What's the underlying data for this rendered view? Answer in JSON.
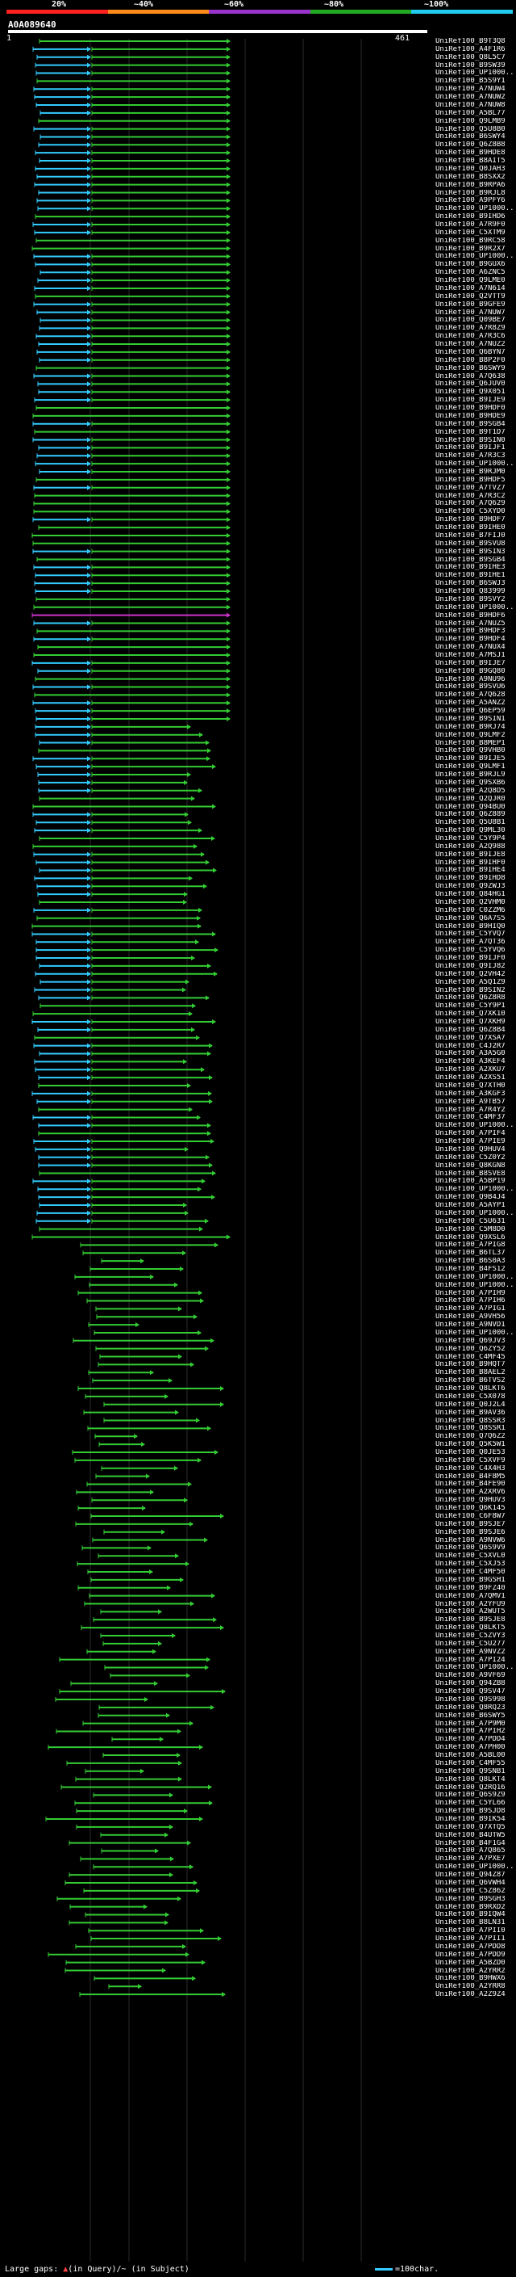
{
  "ruler": {
    "labels": [
      "20%",
      "~40%",
      "~60%",
      "~80%",
      "~100%"
    ],
    "colors": [
      "#ff2020",
      "#ff8c1a",
      "#9933cc",
      "#22aa22",
      "#22ccee"
    ]
  },
  "query": {
    "id": "A0A089640",
    "start": "1",
    "end": "461"
  },
  "colors": {
    "green": "#33cc33",
    "cyan": "#33ccff",
    "magenta": "#cc33cc",
    "grid": "#555555"
  },
  "hits": [
    "UniRef100_B9T3Q8",
    "UniRef100_A4F1R6",
    "UniRef100_Q8L5C7",
    "UniRef100_B9SW39",
    "UniRef100_UP1000...",
    "UniRef100_B5S9Y1",
    "UniRef100_A7NUW4",
    "UniRef100_A7NUW2",
    "UniRef100_A7NUW8",
    "UniRef100_A5BL77",
    "UniRef100_Q9LMB9",
    "UniRef100_Q5U8B0",
    "UniRef100_B6SWY4",
    "UniRef100_Q6Z8B8",
    "UniRef100_B9HDE8",
    "UniRef100_B8AIT5",
    "UniRef100_Q0JAH3",
    "UniRef100_B8SXX2",
    "UniRef100_B9RPA6",
    "UniRef100_B9RJL8",
    "UniRef100_A9PFY6",
    "UniRef100_UP1000...",
    "UniRef100_B9IHD6",
    "UniRef100_A7R9F0",
    "UniRef100_C5XTM9",
    "UniRef100_B9RC58",
    "UniRef100_B9R2X7",
    "UniRef100_UP1000...",
    "UniRef100_B9GUX6",
    "UniRef100_A6ZNC5",
    "UniRef100_Q9LME0",
    "UniRef100_A7N614",
    "UniRef100_Q2VTT9",
    "UniRef100_B9GFE9",
    "UniRef100_A7NUW7",
    "UniRef100_Q09BE7",
    "UniRef100_A7R8Z9",
    "UniRef100_A7R3C6",
    "UniRef100_A7NUZ2",
    "UniRef100_Q6BYN7",
    "UniRef100_B8P2F0",
    "UniRef100_B6SWY9",
    "UniRef100_A7Q638",
    "UniRef100_Q6JUV0",
    "UniRef100_Q9X051",
    "UniRef100_B9IJE9",
    "UniRef100_B9HDF0",
    "UniRef100_B9HDE9",
    "UniRef100_B9SGB4",
    "UniRef100_B9T1D7",
    "UniRef100_B9SIN0",
    "UniRef100_B9IJF1",
    "UniRef100_A7R3C3",
    "UniRef100_UP1000...",
    "UniRef100_B9RJM0",
    "UniRef100_B9HDF5",
    "UniRef100_A7TVZ7",
    "UniRef100_A7R3C2",
    "UniRef100_A7Q629",
    "UniRef100_C5XYD0",
    "UniRef100_B9HDF7",
    "UniRef100_B9IHE0",
    "UniRef100_B7FIJ0",
    "UniRef100_B9SVU8",
    "UniRef100_B9SIN3",
    "UniRef100_B9SGB4",
    "UniRef100_B9IHE3",
    "UniRef100_B9IHE1",
    "UniRef100_B6SWJ3",
    "UniRef100_Q83999",
    "UniRef100_B9SVY2",
    "UniRef100_UP1000...",
    "UniRef100_B9HDF6",
    "UniRef100_A7NUZ5",
    "UniRef100_B9HDF3",
    "UniRef100_B9HDF4",
    "UniRef100_A7NUX4",
    "UniRef100_A7MSJ1",
    "UniRef100_B9IJE7",
    "UniRef100_B9GQ80",
    "UniRef100_A9NU96",
    "UniRef100_B9SVU6",
    "UniRef100_A7Q628",
    "UniRef100_A5ANZ2",
    "UniRef100_Q6EP59",
    "UniRef100_B9SIN1",
    "UniRef100_B9RJ74",
    "UniRef100_Q9LMF2",
    "UniRef100_B8MEP1",
    "UniRef100_Q9VHB0",
    "UniRef100_B9IJE5",
    "UniRef100_Q9LMF1",
    "UniRef100_B9RJL9",
    "UniRef100_Q9SXB6",
    "UniRef100_A2Q8D5",
    "UniRef100_Q2QJR0",
    "UniRef100_Q94BU0",
    "UniRef100_Q6Z889",
    "UniRef100_Q5U8B1",
    "UniRef100_Q9ML30",
    "UniRef100_C5Y9P4",
    "UniRef100_A2Q988",
    "UniRef100_B9IJE8",
    "UniRef100_B9IHF0",
    "UniRef100_B9IHE4",
    "UniRef100_B9IHD8",
    "UniRef100_Q9ZWJ3",
    "UniRef100_Q84HG1",
    "UniRef100_Q2VHM0",
    "UniRef100_C0ZZM6",
    "UniRef100_Q6A7S5",
    "UniRef100_B9HIQ0",
    "UniRef100_C5YVQ7",
    "UniRef100_A7QT36",
    "UniRef100_C5YVQ6",
    "UniRef100_B9IJF0",
    "UniRef100_Q9IJ82",
    "UniRef100_Q2VH42",
    "UniRef100_A5Q1Z9",
    "UniRef100_B9SIN2",
    "UniRef100_Q6Z8R8",
    "UniRef100_C5Y9P1",
    "UniRef100_Q7XK10",
    "UniRef100_Q7XKH9",
    "UniRef100_Q6Z8B4",
    "UniRef100_Q7XSA7",
    "UniRef100_C4J2R7",
    "UniRef100_A3A5G0",
    "UniRef100_A3KEF4",
    "UniRef100_A2XKU7",
    "UniRef100_A2XS51",
    "UniRef100_Q7XTH0",
    "UniRef100_A3KGF3",
    "UniRef100_A9TB57",
    "UniRef100_A7R4Y2",
    "UniRef100_C4MF37",
    "UniRef100_UP1000...",
    "UniRef100_A7PIF4",
    "UniRef100_A7PIE9",
    "UniRef100_Q9HUV4",
    "UniRef100_C5Z0Y2",
    "UniRef100_Q8KGN8",
    "UniRef100_B8SVE8",
    "UniRef100_A5BP19",
    "UniRef100_UP1000...",
    "UniRef100_Q9B4J4",
    "UniRef100_A5AYP1",
    "UniRef100_UP1000...",
    "UniRef100_C5U631",
    "UniRef100_C5M8D0",
    "UniRef100_Q9XSL6",
    "UniRef100_A7PIG8",
    "UniRef100_B6TL37",
    "UniRef100_B6S0A3",
    "UniRef100_B4FS12",
    "UniRef100_UP1000...",
    "UniRef100_UP1000...",
    "UniRef100_A7PIH9",
    "UniRef100_A7PIH6",
    "UniRef100_A7PIG1",
    "UniRef100_A9VH56",
    "UniRef100_A9NVD1",
    "UniRef100_UP1000...",
    "UniRef100_Q69JV3",
    "UniRef100_Q6ZY52",
    "UniRef100_C4MF45",
    "UniRef100_B9HQT7",
    "UniRef100_B8AEL2",
    "UniRef100_B6TVS2",
    "UniRef100_Q8LKT6",
    "UniRef100_C5X078",
    "UniRef100_Q0J2L4",
    "UniRef100_B9AV36",
    "UniRef100_Q8SSR3",
    "UniRef100_Q8SSR1",
    "UniRef100_Q7Q6Z2",
    "UniRef100_Q5K5W1",
    "UniRef100_Q0JE53",
    "UniRef100_C5XVF9",
    "UniRef100_C4X4H3",
    "UniRef100_B4F8M5",
    "UniRef100_B4FE90",
    "UniRef100_A2XRV6",
    "UniRef100_Q9HUV3",
    "UniRef100_Q6K145",
    "UniRef100_C6F8W7",
    "UniRef100_B9SJE7",
    "UniRef100_B9SJE6",
    "UniRef100_A9NVW6",
    "UniRef100_Q6S9V9",
    "UniRef100_C5XVL0",
    "UniRef100_C5XJ53",
    "UniRef100_C4MF50",
    "UniRef100_B9GSH1",
    "UniRef100_B9FZ40",
    "UniRef100_A7QMV1",
    "UniRef100_A2YFU9",
    "UniRef100_A2WUT5",
    "UniRef100_B9SJE8",
    "UniRef100_Q8LKT5",
    "UniRef100_C5ZVY3",
    "UniRef100_C5U277",
    "UniRef100_A9NVZ2",
    "UniRef100_A7PI24",
    "UniRef100_UP1000...",
    "UniRef100_A9VF69",
    "UniRef100_Q94ZB8",
    "UniRef100_Q9SV47",
    "UniRef100_Q9S998",
    "UniRef100_Q8RQ23",
    "UniRef100_B6SWY5",
    "UniRef100_A7P9M0",
    "UniRef100_A7PIH2",
    "UniRef100_A7PDD4",
    "UniRef100_A7PH00",
    "UniRef100_A5BL00",
    "UniRef100_C4MF55",
    "UniRef100_Q9SNB1",
    "UniRef100_Q8LKT4",
    "UniRef100_Q2RQ16",
    "UniRef100_Q6S9Z9",
    "UniRef100_C5YL66",
    "UniRef100_B9SJD8",
    "UniRef100_B9IK54",
    "UniRef100_Q7XTQ5",
    "UniRef100_B4UTW5",
    "UniRef100_B4F1G4",
    "UniRef100_A7Q865",
    "UniRef100_A7PXE7",
    "UniRef100_UP1000...",
    "UniRef100_Q94Z87",
    "UniRef100_Q6VWH4",
    "UniRef100_C5Z862",
    "UniRef100_B9SGH3",
    "UniRef100_B9RXD2",
    "UniRef100_B9IQW4",
    "UniRef100_B8LN31",
    "UniRef100_A7PII0",
    "UniRef100_A7PII1",
    "UniRef100_A7PDD8",
    "UniRef100_A7PDD9",
    "UniRef100_A5BZD0",
    "UniRef100_A2YRR2",
    "UniRef100_B9HWX6",
    "UniRef100_A2YRR8",
    "UniRef100_A2Z9Z4"
  ],
  "legend": {
    "left_prefix": "Large gaps:",
    "in_query": "(in Query)",
    "in_subject": "/~ (in Subject)",
    "right_text": "=100char."
  }
}
